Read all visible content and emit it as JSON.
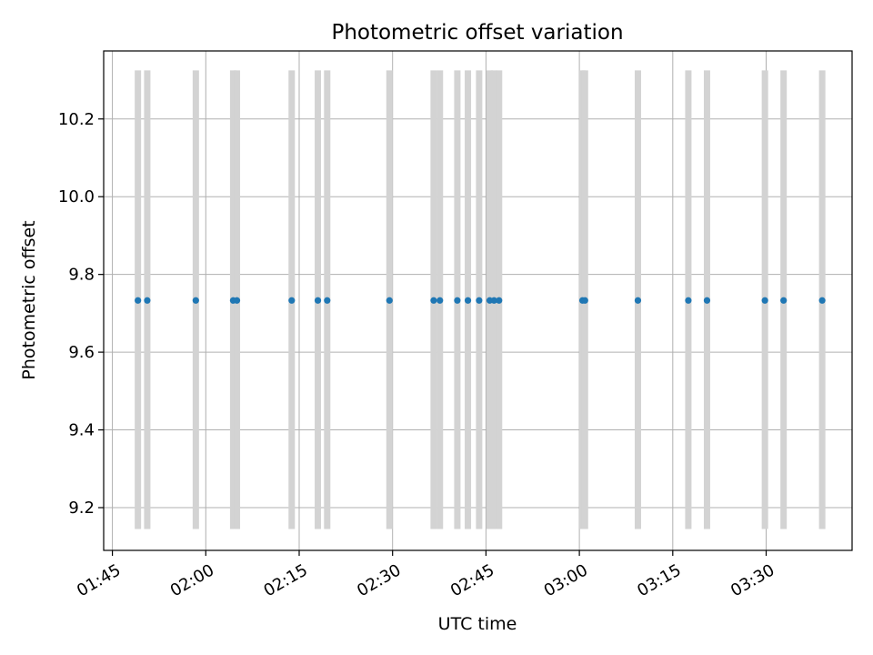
{
  "chart_data": {
    "type": "scatter",
    "title": "Photometric offset variation",
    "xlabel": "UTC time",
    "ylabel": "Photometric offset",
    "x_ticks": [
      "01:45",
      "02:00",
      "02:15",
      "02:30",
      "02:45",
      "03:00",
      "03:15",
      "03:30"
    ],
    "x_tick_minutes": [
      105,
      120,
      135,
      150,
      165,
      180,
      195,
      210
    ],
    "xlim_minutes": [
      103.6,
      223.8
    ],
    "y_ticks": [
      "9.2",
      "9.4",
      "9.6",
      "9.8",
      "10.0",
      "10.2"
    ],
    "y_tick_values": [
      9.2,
      9.4,
      9.6,
      9.8,
      10.0,
      10.2
    ],
    "ylim": [
      9.09,
      10.375
    ],
    "grid": true,
    "band_range": [
      9.145,
      10.325
    ],
    "band_color": "#d3d3d3",
    "point_color": "#1f77b4",
    "series": [
      {
        "x_minutes": [
          109.1,
          110.6,
          118.4,
          124.4,
          125.0,
          133.8,
          138.0,
          139.5,
          149.5,
          156.6,
          157.6,
          160.4,
          162.1,
          163.9,
          165.6,
          166.3,
          167.1,
          180.5,
          180.9,
          189.4,
          197.5,
          200.5,
          209.8,
          212.8,
          219.0
        ],
        "y": [
          9.733,
          9.733,
          9.733,
          9.733,
          9.733,
          9.733,
          9.733,
          9.733,
          9.733,
          9.733,
          9.733,
          9.733,
          9.733,
          9.733,
          9.733,
          9.733,
          9.733,
          9.733,
          9.733,
          9.733,
          9.733,
          9.733,
          9.733,
          9.733,
          9.733
        ]
      }
    ]
  }
}
